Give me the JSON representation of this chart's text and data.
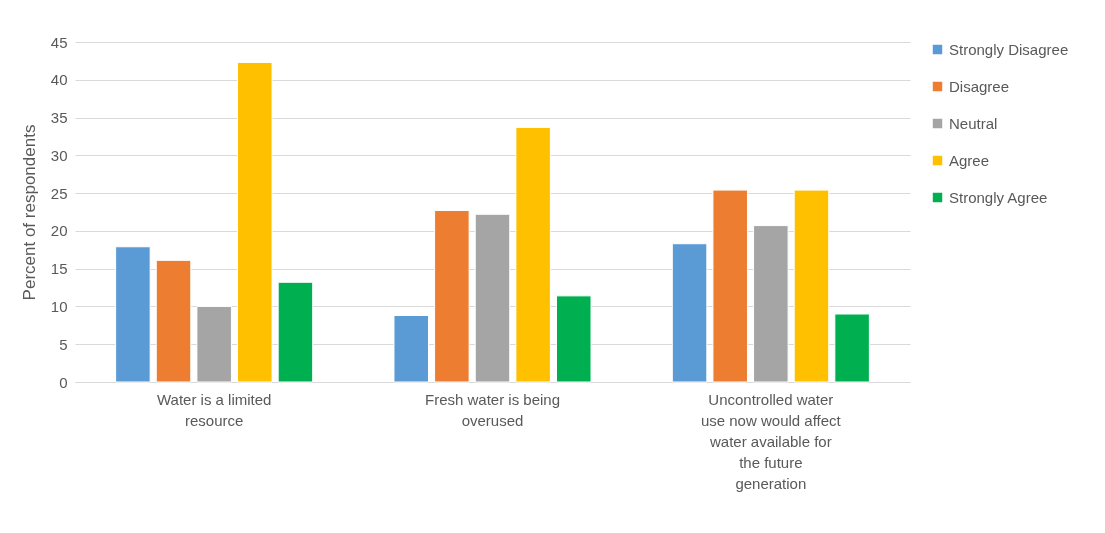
{
  "chart_data": {
    "type": "bar",
    "ylabel": "Percent of respondents",
    "categories": [
      "Water is a limited resource",
      "Fresh water is being overused",
      "Uncontrolled water use now would affect water available for the future generation"
    ],
    "series": [
      {
        "name": "Strongly Disagree",
        "color": "#5b9bd5",
        "values": [
          17.9,
          8.8,
          18.3
        ]
      },
      {
        "name": "Disagree",
        "color": "#ed7d31",
        "values": [
          16.1,
          22.7,
          25.4
        ]
      },
      {
        "name": "Neutral",
        "color": "#a5a5a5",
        "values": [
          10.0,
          22.2,
          20.7
        ]
      },
      {
        "name": "Agree",
        "color": "#ffc000",
        "values": [
          42.3,
          33.7,
          25.4
        ]
      },
      {
        "name": "Strongly Agree",
        "color": "#00b050",
        "values": [
          13.2,
          11.4,
          9.0
        ]
      }
    ],
    "ylim": [
      0,
      45
    ],
    "yticks": [
      0,
      5,
      10,
      15,
      20,
      25,
      30,
      35,
      40,
      45
    ],
    "grid": "y",
    "legend": "right"
  }
}
